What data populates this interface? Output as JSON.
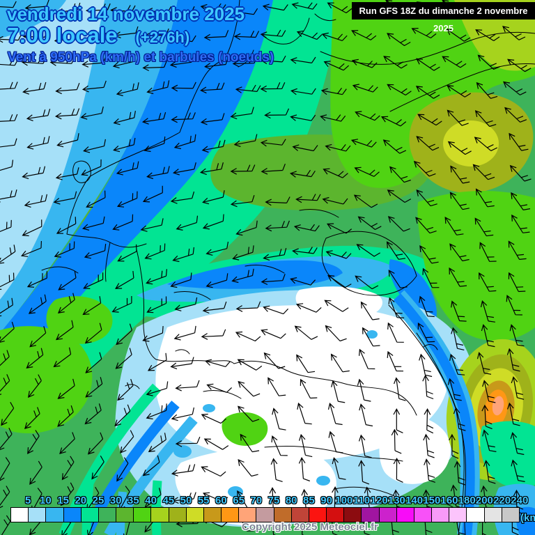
{
  "header": {
    "date_line": "vendredi 14 novembre 2025",
    "time_line": "7:00 locale",
    "forecast_offset": "(+276h)",
    "subtitle": "Vent à 950hPa (km/h) et barbules (noeuds)"
  },
  "run_banner": {
    "text": "Run GFS 18Z du dimanche 2 novembre 2025"
  },
  "copyright": "Copyright 2025 Meteociel.fr",
  "colorbar": {
    "unit_label": "(km",
    "tick_values": [
      5,
      10,
      15,
      20,
      25,
      30,
      35,
      40,
      45,
      50,
      55,
      60,
      65,
      70,
      75,
      80,
      85,
      90,
      100,
      110,
      120,
      130,
      140,
      150,
      160,
      180,
      200,
      220,
      240
    ],
    "cell_colors": [
      "#ffffff",
      "#a6e0f8",
      "#38b6f0",
      "#0a86fa",
      "#02e493",
      "#3eb35a",
      "#5cb52e",
      "#50d313",
      "#a6d31d",
      "#9fb21a",
      "#cfdc26",
      "#c8991a",
      "#ff9715",
      "#ffa478",
      "#c49b9f",
      "#c06c2a",
      "#c04438",
      "#fc1410",
      "#d40f10",
      "#8c0c10",
      "#a015a0",
      "#cc22cc",
      "#f80cf8",
      "#f851f8",
      "#f89af8",
      "#fcc4fc",
      "#ffffff",
      "#e4e4e4",
      "#c8c8c8"
    ]
  },
  "palette": {
    "white": "#ffffff",
    "lblue": "#a6e0f8",
    "cyan": "#38b6f0",
    "blue": "#0a86fa",
    "emerald": "#02e493",
    "green": "#3eb35a",
    "green2": "#5cb52e",
    "bgreen": "#50d313",
    "ygreen": "#a6d31d",
    "olive": "#9fb21a",
    "yellow": "#cfdc26",
    "mustard": "#c8991a",
    "orange": "#ff9715",
    "salmon": "#ffa478"
  }
}
